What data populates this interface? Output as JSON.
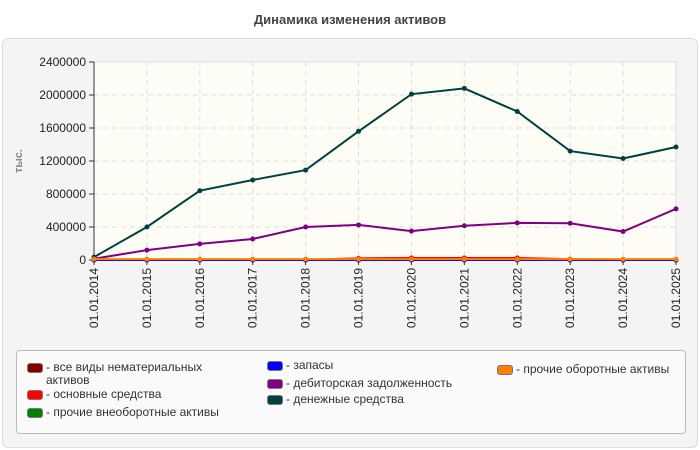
{
  "chart_data": {
    "type": "line",
    "title": "Динамика изменения активов",
    "ylabel": "тыс.",
    "ylim": [
      0,
      2400000
    ],
    "yticks": [
      "0",
      "400000",
      "800000",
      "1200000",
      "1600000",
      "2000000",
      "2400000"
    ],
    "grid": true,
    "legend_placement": "bottom",
    "categories": [
      "01.01.2014",
      "01.01.2015",
      "01.01.2016",
      "01.01.2017",
      "01.01.2018",
      "01.01.2019",
      "01.01.2020",
      "01.01.2021",
      "01.01.2022",
      "01.01.2023",
      "01.01.2024",
      "01.01.2025"
    ],
    "series": [
      {
        "name": "все виды нематериальных активов",
        "color": "#800000",
        "values": [
          0,
          0,
          0,
          0,
          0,
          0,
          0,
          0,
          0,
          0,
          0,
          0
        ]
      },
      {
        "name": "основные средства",
        "color": "#ff0000",
        "values": [
          0,
          5000,
          5000,
          5000,
          5000,
          20000,
          25000,
          25000,
          25000,
          10000,
          5000,
          5000
        ]
      },
      {
        "name": "прочие внеоборотные активы",
        "color": "#008000",
        "values": [
          0,
          0,
          0,
          0,
          0,
          0,
          0,
          0,
          0,
          0,
          0,
          0
        ]
      },
      {
        "name": "запасы",
        "color": "#0000ff",
        "values": [
          0,
          0,
          0,
          0,
          0,
          0,
          0,
          0,
          0,
          0,
          0,
          0
        ]
      },
      {
        "name": "дебиторская задолженность",
        "color": "#800080",
        "values": [
          15000,
          120000,
          195000,
          255000,
          400000,
          425000,
          350000,
          415000,
          450000,
          445000,
          345000,
          620000
        ]
      },
      {
        "name": "денежные средства",
        "color": "#004040",
        "values": [
          35000,
          400000,
          840000,
          970000,
          1090000,
          1560000,
          2010000,
          2080000,
          1800000,
          1320000,
          1230000,
          1370000
        ]
      },
      {
        "name": "прочие оборотные активы",
        "color": "#ff8000",
        "values": [
          10000,
          10000,
          10000,
          10000,
          10000,
          10000,
          10000,
          10000,
          10000,
          10000,
          10000,
          10000
        ]
      }
    ]
  }
}
